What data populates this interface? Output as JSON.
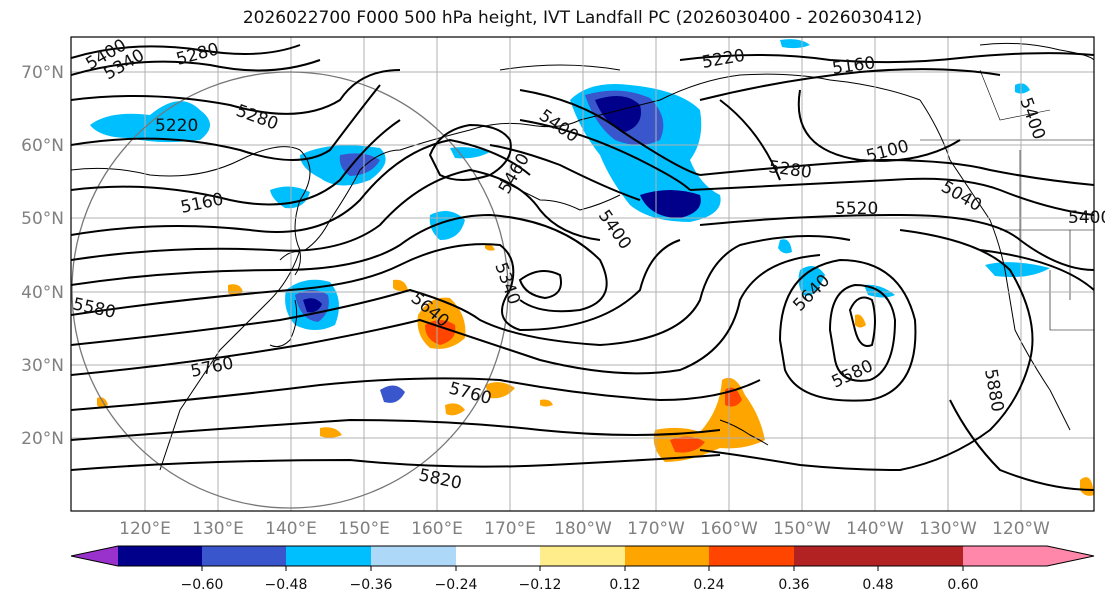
{
  "title": "2026022700 F000 500 hPa height, IVT Landfall PC (2026030400 - 2026030412)",
  "lat_labels": [
    "70°N",
    "60°N",
    "50°N",
    "40°N",
    "30°N",
    "20°N"
  ],
  "lon_labels": [
    "120°E",
    "130°E",
    "140°E",
    "150°E",
    "160°E",
    "170°E",
    "180°W",
    "170°W",
    "160°W",
    "150°W",
    "140°W",
    "130°W",
    "120°W"
  ],
  "contour_labels": [
    "5400",
    "5340",
    "5280",
    "5220",
    "5280",
    "5160",
    "5580",
    "5760",
    "5400",
    "5460",
    "5400",
    "5340",
    "5640",
    "5760",
    "5820",
    "5220",
    "5160",
    "5280",
    "5100",
    "5040",
    "5520",
    "5640",
    "5580",
    "5880",
    "5400",
    "5400"
  ],
  "colorbar": {
    "ticks": [
      "−0.60",
      "−0.48",
      "−0.36",
      "−0.24",
      "−0.12",
      "0.12",
      "0.24",
      "0.36",
      "0.48",
      "0.60"
    ],
    "colors": [
      "#9932cc",
      "#00008b",
      "#3a56cc",
      "#00bfff",
      "#add8f8",
      "#ffffff",
      "#ffec8b",
      "#ffa500",
      "#ff4500",
      "#b22222",
      "#ff88aa"
    ]
  }
}
